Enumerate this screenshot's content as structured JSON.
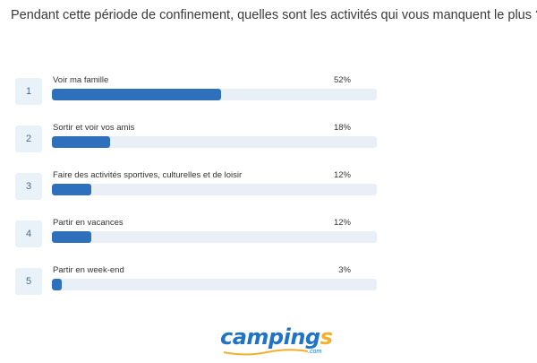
{
  "question": "Pendant cette période de confinement, quelles sont les activités qui vous manquent le plus ?",
  "colors": {
    "bar": "#2e70bb",
    "track": "#e8eff7",
    "rank_bg": "#e9f1f9"
  },
  "items": [
    {
      "rank": "1",
      "label": "Voir ma famille",
      "pct": "52%",
      "value": 52
    },
    {
      "rank": "2",
      "label": "Sortir et voir vos amis",
      "pct": "18%",
      "value": 18
    },
    {
      "rank": "3",
      "label": "Faire des activités sportives, culturelles et de loisir",
      "pct": "12%",
      "value": 12
    },
    {
      "rank": "4",
      "label": "Partir en vacances",
      "pct": "12%",
      "value": 12
    },
    {
      "rank": "5",
      "label": "Partir en week-end",
      "pct": "3%",
      "value": 3
    }
  ],
  "logo": {
    "main": "camping",
    "accent": "s",
    "sub": ".com"
  }
}
